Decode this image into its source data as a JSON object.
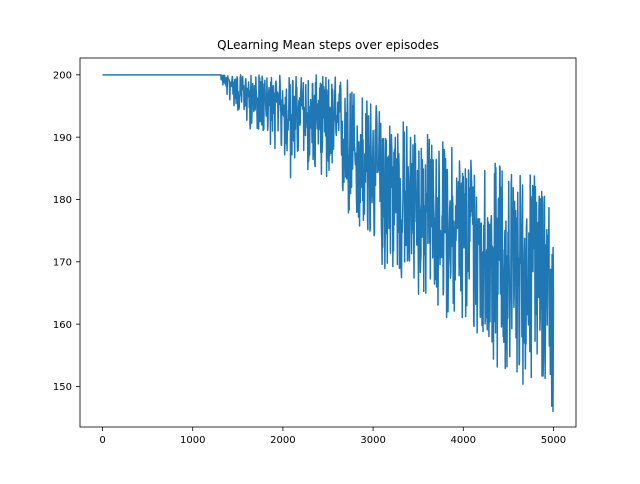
{
  "chart_data": {
    "type": "line",
    "title": "QLearning Mean steps over episodes",
    "xlabel": "",
    "ylabel": "",
    "xlim": [
      -250,
      5250
    ],
    "ylim": [
      143.5,
      202.7
    ],
    "xticks": [
      0,
      1000,
      2000,
      3000,
      4000,
      5000
    ],
    "yticks": [
      150,
      160,
      170,
      180,
      190,
      200
    ],
    "grid": false,
    "legend": "none",
    "series": [
      {
        "color": "#1f77b4",
        "x": [
          0,
          100,
          200,
          300,
          400,
          500,
          600,
          700,
          800,
          900,
          1000,
          1100,
          1200,
          1300,
          1350,
          1400,
          1450,
          1500,
          1550,
          1600,
          1650,
          1700,
          1750,
          1800,
          1850,
          1900,
          1950,
          2000,
          2050,
          2100,
          2150,
          2200,
          2250,
          2300,
          2350,
          2400,
          2450,
          2500,
          2550,
          2600,
          2650,
          2700,
          2750,
          2800,
          2850,
          2900,
          2950,
          3000,
          3050,
          3100,
          3150,
          3200,
          3250,
          3300,
          3350,
          3400,
          3450,
          3500,
          3550,
          3600,
          3650,
          3700,
          3750,
          3800,
          3850,
          3900,
          3950,
          4000,
          4050,
          4100,
          4150,
          4200,
          4250,
          4300,
          4350,
          4400,
          4450,
          4500,
          4550,
          4600,
          4650,
          4700,
          4750,
          4800,
          4850,
          4900,
          4950,
          5000
        ],
        "y": [
          200,
          200,
          200,
          200,
          200,
          200,
          200,
          200,
          200,
          200,
          200,
          200,
          200,
          200,
          199.5,
          199,
          198.5,
          198,
          197.5,
          197,
          196.5,
          196,
          196.5,
          196,
          195.5,
          195,
          195.5,
          195,
          194.5,
          194,
          194.5,
          195,
          194,
          193.5,
          193,
          194,
          193,
          192.5,
          192,
          191,
          191.5,
          190,
          189,
          187.5,
          187,
          186,
          185.5,
          185,
          184,
          183.5,
          183,
          182.5,
          182,
          181.5,
          181,
          180,
          179.5,
          179,
          178.5,
          178,
          177.5,
          177,
          176.5,
          176,
          175.5,
          175,
          175.5,
          174.5,
          174,
          173.5,
          173,
          172.5,
          172.5,
          172,
          172,
          171.5,
          171,
          171,
          170.5,
          170.5,
          170,
          170,
          169.5,
          169,
          169,
          168.5,
          168,
          164
        ],
        "upper": [
          200,
          200,
          200,
          200,
          200,
          200,
          200,
          200,
          200,
          200,
          200,
          200,
          200,
          200,
          200,
          200,
          200,
          200,
          200,
          200,
          200,
          200,
          200,
          200,
          200,
          200,
          200,
          200,
          200,
          200,
          200,
          200,
          200,
          200,
          200,
          200,
          200,
          200,
          200,
          200,
          200,
          200,
          200,
          198,
          199,
          197,
          196,
          197,
          195,
          195,
          194,
          194,
          193,
          193,
          193,
          192,
          192,
          192,
          191,
          191,
          190,
          190,
          190,
          189,
          189,
          189,
          188,
          188,
          188,
          188,
          187,
          187,
          187,
          187,
          186,
          186,
          186,
          186,
          185,
          185,
          185,
          185,
          185,
          185,
          184,
          184,
          184,
          172
        ],
        "lower": [
          200,
          200,
          200,
          200,
          200,
          200,
          200,
          200,
          200,
          200,
          200,
          200,
          200,
          200,
          197,
          196,
          195,
          194,
          193,
          192,
          191,
          191,
          191,
          190,
          189,
          188,
          188,
          187,
          185,
          182,
          186,
          186,
          184,
          185,
          184,
          185,
          183,
          182,
          181,
          179,
          180,
          177,
          176,
          173,
          174,
          172,
          170,
          173,
          170,
          169,
          168,
          169,
          167,
          166,
          166,
          165,
          165,
          164,
          164,
          163,
          163,
          162,
          162,
          161,
          161,
          160,
          160,
          159,
          158,
          158,
          157,
          156,
          156,
          155,
          153,
          153,
          152,
          152,
          151,
          151,
          150,
          150,
          150,
          149,
          149,
          148,
          148,
          146
        ]
      }
    ]
  }
}
